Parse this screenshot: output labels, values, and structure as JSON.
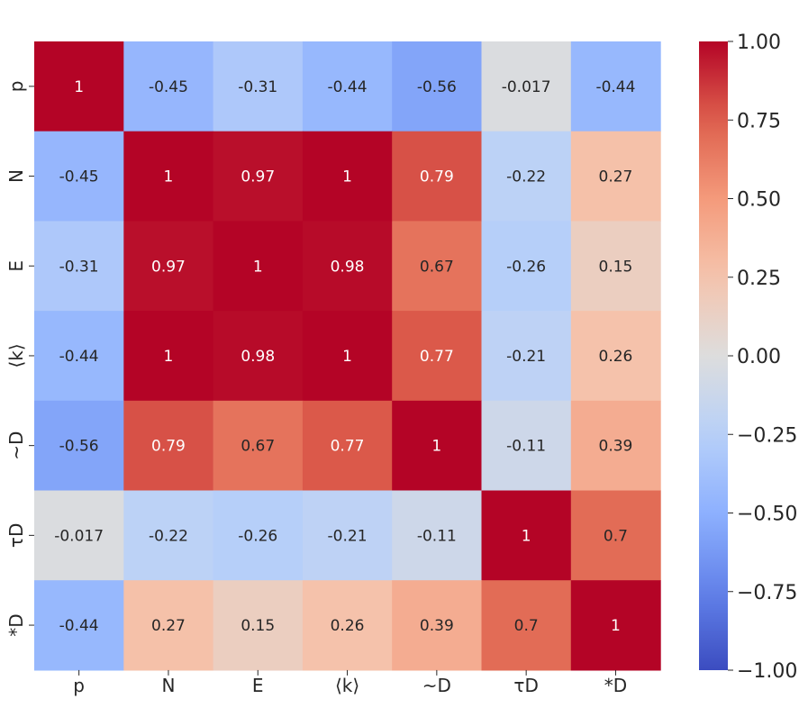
{
  "chart_data": {
    "type": "heatmap",
    "title": "",
    "xlabel": "",
    "ylabel": "",
    "x_categories": [
      "p",
      "N",
      "E",
      "⟨k⟩",
      "~D",
      "τD",
      "*D"
    ],
    "y_categories": [
      "p",
      "N",
      "E",
      "⟨k⟩",
      "~D",
      "τD",
      "*D"
    ],
    "values": [
      [
        1,
        -0.45,
        -0.31,
        -0.44,
        -0.56,
        -0.017,
        -0.44
      ],
      [
        -0.45,
        1,
        0.97,
        1,
        0.79,
        -0.22,
        0.27
      ],
      [
        -0.31,
        0.97,
        1,
        0.98,
        0.67,
        -0.26,
        0.15
      ],
      [
        -0.44,
        1,
        0.98,
        1,
        0.77,
        -0.21,
        0.26
      ],
      [
        -0.56,
        0.79,
        0.67,
        0.77,
        1,
        -0.11,
        0.39
      ],
      [
        -0.017,
        -0.22,
        -0.26,
        -0.21,
        -0.11,
        1,
        0.7
      ],
      [
        -0.44,
        0.27,
        0.15,
        0.26,
        0.39,
        0.7,
        1
      ]
    ],
    "value_labels": [
      [
        "1",
        "-0.45",
        "-0.31",
        "-0.44",
        "-0.56",
        "-0.017",
        "-0.44"
      ],
      [
        "-0.45",
        "1",
        "0.97",
        "1",
        "0.79",
        "-0.22",
        "0.27"
      ],
      [
        "-0.31",
        "0.97",
        "1",
        "0.98",
        "0.67",
        "-0.26",
        "0.15"
      ],
      [
        "-0.44",
        "1",
        "0.98",
        "1",
        "0.77",
        "-0.21",
        "0.26"
      ],
      [
        "-0.56",
        "0.79",
        "0.67",
        "0.77",
        "1",
        "-0.11",
        "0.39"
      ],
      [
        "-0.017",
        "-0.22",
        "-0.26",
        "-0.21",
        "-0.11",
        "1",
        "0.7"
      ],
      [
        "-0.44",
        "0.27",
        "0.15",
        "0.26",
        "0.39",
        "0.7",
        "1"
      ]
    ],
    "colormap": "coolwarm",
    "vmin": -1.0,
    "vmax": 1.0,
    "colorbar": {
      "ticks": [
        1.0,
        0.75,
        0.5,
        0.25,
        0.0,
        -0.25,
        -0.5,
        -0.75,
        -1.0
      ],
      "tick_labels": [
        "1.00",
        "0.75",
        "0.50",
        "0.25",
        "0.00",
        "−0.25",
        "−0.50",
        "−0.75",
        "−1.00"
      ]
    }
  }
}
